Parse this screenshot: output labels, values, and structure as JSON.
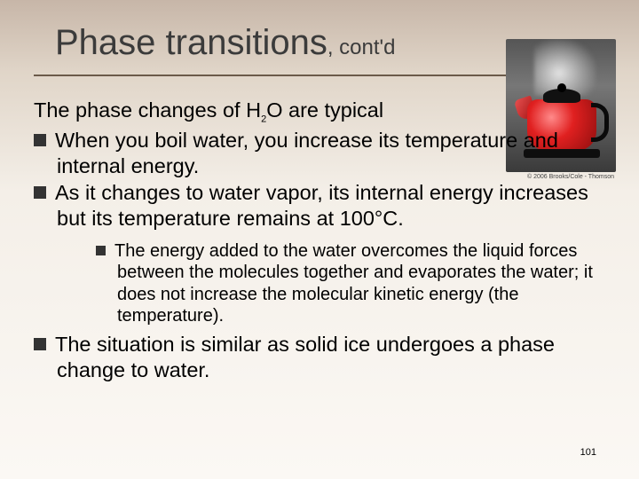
{
  "title": {
    "main": "Phase transitions",
    "suffix": ", cont'd"
  },
  "intro": "The phase changes of H",
  "intro_sub": "2",
  "intro_after": "O are typical",
  "bullets": {
    "b1": "When you boil water, you increase its temperature and internal energy.",
    "b2": "As it changes to water vapor, its internal energy increases but its temperature remains at 100°C.",
    "sub1": "The energy added to the water overcomes the liquid forces between the molecules together and evaporates the water; it does not increase the molecular kinetic energy (the temperature).",
    "b3": "The situation is similar as solid ice undergoes a phase change to water."
  },
  "page_number": "101",
  "image": {
    "alt": "red-kettle-with-steam",
    "credit": "© 2006 Brooks/Cole - Thomson",
    "colors": {
      "body": "#e02020",
      "handle": "#0a0a0a",
      "background": "#555"
    }
  },
  "style": {
    "title_fontsize": 40,
    "body_fontsize": 23.5,
    "sub_fontsize": 20,
    "text_color": "#000000",
    "underline_color": "#6b5a4a",
    "bg_gradient": [
      "#c7b6a8",
      "#fbf8f4"
    ]
  }
}
